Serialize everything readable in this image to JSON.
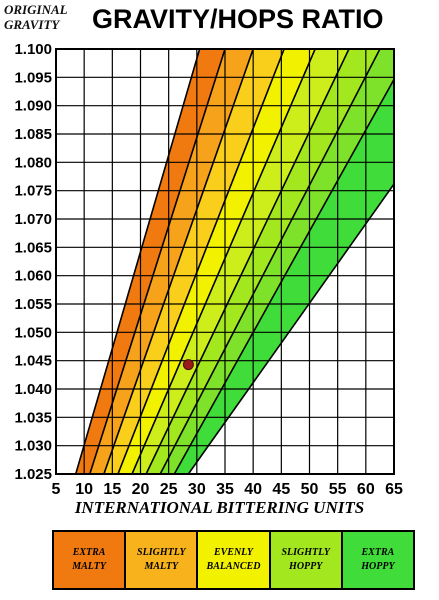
{
  "header": {
    "y_axis_title_line1": "ORIGINAL",
    "y_axis_title_line2": "GRAVITY",
    "title": "GRAVITY/HOPS RATIO"
  },
  "chart_data": {
    "type": "area",
    "title": "GRAVITY/HOPS RATIO",
    "ylabel": "ORIGINAL GRAVITY",
    "xlabel": "INTERNATIONAL BITTERING UNITS",
    "xlim": [
      5,
      65
    ],
    "ylim": [
      1.025,
      1.1
    ],
    "x_ticks": [
      "5",
      "10",
      "15",
      "20",
      "25",
      "30",
      "35",
      "40",
      "45",
      "50",
      "55",
      "60",
      "65"
    ],
    "y_ticks": [
      "1.025",
      "1.030",
      "1.035",
      "1.040",
      "1.045",
      "1.050",
      "1.055",
      "1.060",
      "1.065",
      "1.070",
      "1.075",
      "1.080",
      "1.085",
      "1.090",
      "1.095",
      "1.100"
    ],
    "grid": true,
    "boundary_lines_ibu_at_og_1025": [
      8.5,
      11.0,
      13.5,
      16.0,
      18.5,
      21.0,
      23.5,
      26.0,
      28.5
    ],
    "boundary_lines_ibu_at_og_1100": [
      30.5,
      35.0,
      40.0,
      45.5,
      51.0,
      57.0,
      62.5,
      68.0,
      82.0
    ],
    "band_colors": [
      "#f07a10",
      "#f6a21a",
      "#f9cf1c",
      "#f2f200",
      "#cdee1a",
      "#a3e81e",
      "#7fe22a",
      "#3fdc3a"
    ],
    "point": {
      "ibu": 28.5,
      "og": 1.0443,
      "color": "#9a1a1a"
    },
    "legend": [
      {
        "label": "EXTRA\nMALTY",
        "color": "#f07a10"
      },
      {
        "label": "SLIGHTLY\nMALTY",
        "color": "#f7b21c"
      },
      {
        "label": "EVENLY\nBALANCED",
        "color": "#f2f200"
      },
      {
        "label": "SLIGHTLY\nHOPPY",
        "color": "#a3e81e"
      },
      {
        "label": "EXTRA\nHOPPY",
        "color": "#3fdc3a"
      }
    ]
  }
}
